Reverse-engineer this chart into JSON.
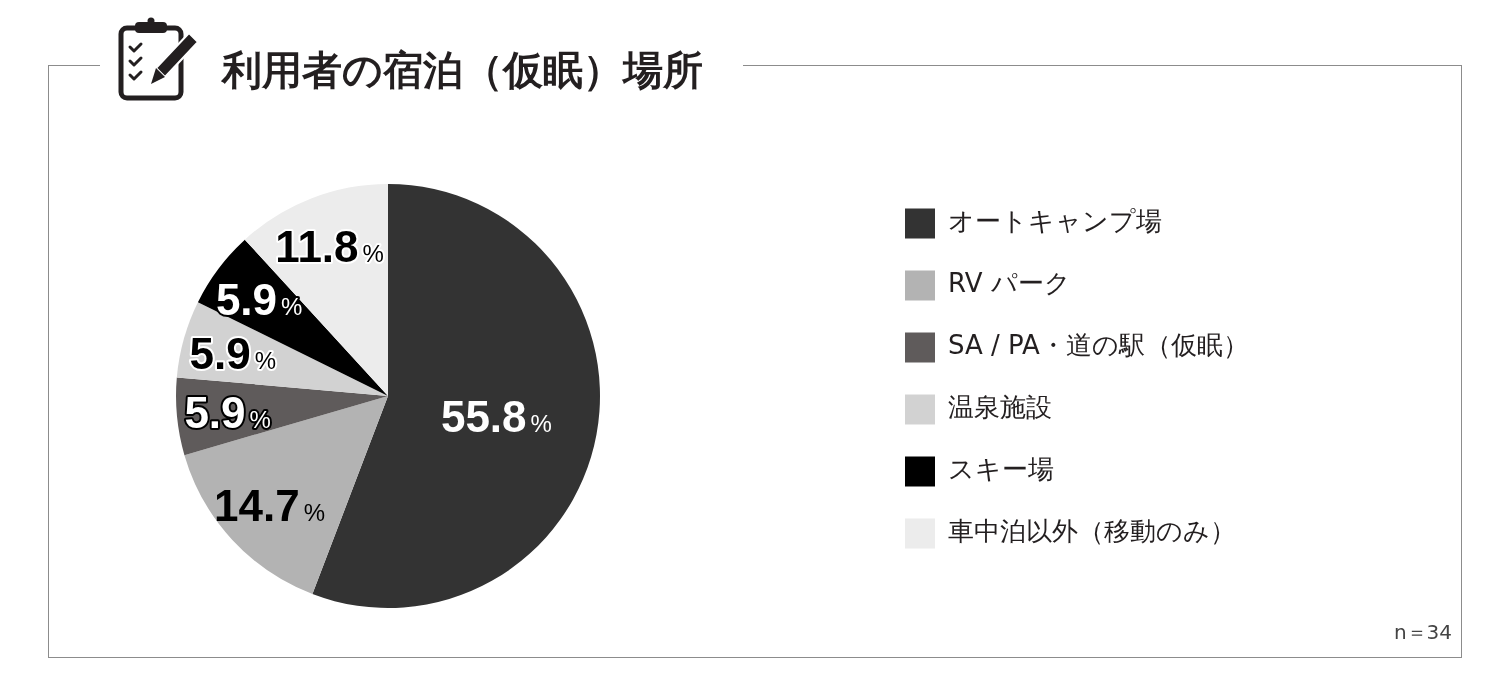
{
  "chart_data": {
    "type": "pie",
    "title": "利用者の宿泊（仮眠）場所",
    "categories": [
      "オートキャンプ場",
      "RV パーク",
      "SA / PA・道の駅（仮眠）",
      "温泉施設",
      "スキー場",
      "車中泊以外（移動のみ）"
    ],
    "values": [
      55.8,
      14.7,
      5.9,
      5.9,
      5.9,
      11.8
    ],
    "colors": [
      "#333333",
      "#b3b3b3",
      "#5f5b5b",
      "#d2d2d2",
      "#000000",
      "#ececec"
    ],
    "value_labels": [
      "55.8%",
      "14.7%",
      "5.9%",
      "5.9%",
      "5.9%",
      "11.8%"
    ],
    "legend": "right",
    "annotations": [
      "n＝34"
    ]
  }
}
